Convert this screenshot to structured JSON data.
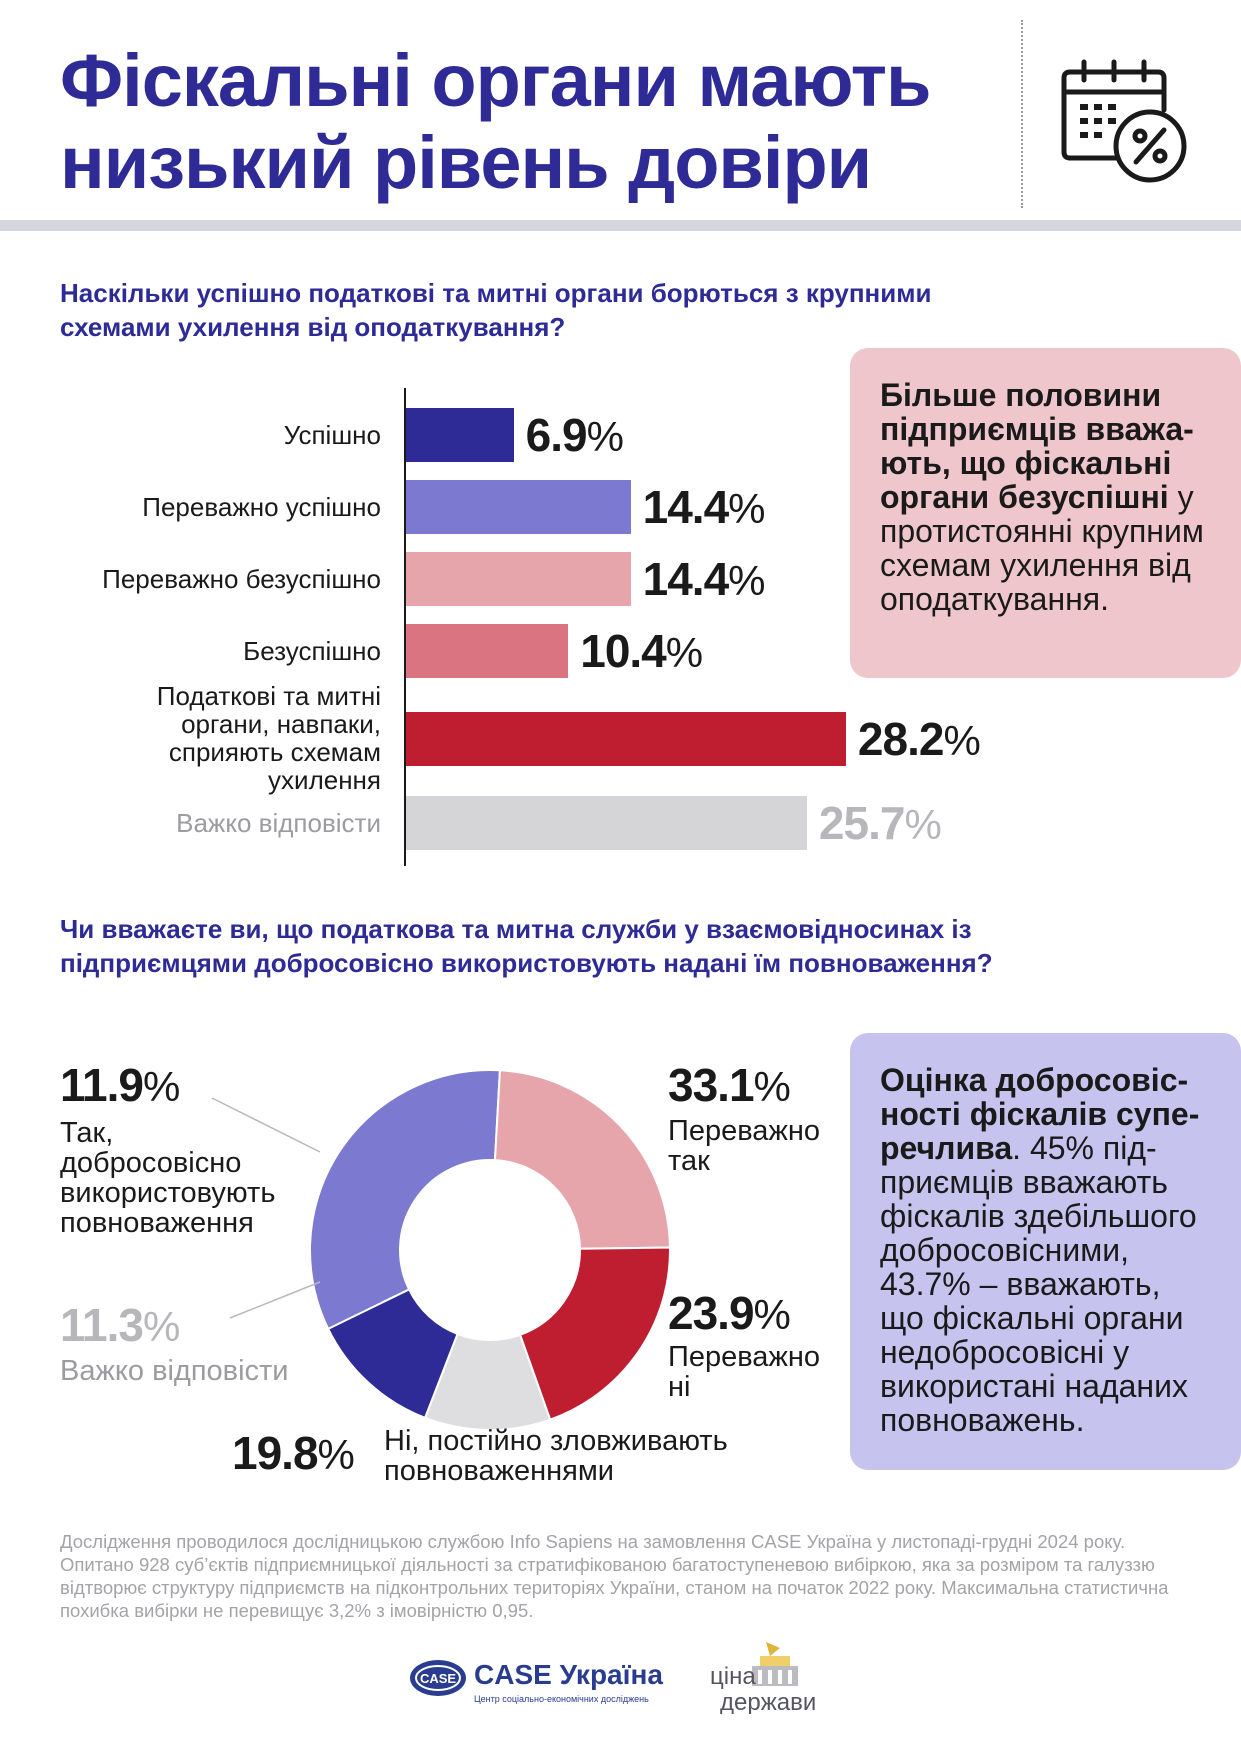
{
  "title": {
    "line1": "Фіскальні органи мають",
    "line2": "низький рівень довіри"
  },
  "header_icon": "calendar-percent-icon",
  "question1": "Наскільки успішно податкові та митні органи борються з крупними схемами ухилення від оподаткування?",
  "callout1": {
    "bold": "Більше половини підприємців вважа­ють, що фіскальні органи безуспішні",
    "rest": " у протистоянні крупним схемам ухилення від опо­даткування."
  },
  "question2": "Чи вважаєте ви, що податкова та митна служби у взаємовідносинах із підприємцями добросовісно використовують надані їм повноваження?",
  "callout2": {
    "bold": "Оцінка добросовіс­ності фіскалів супе­речлива",
    "rest": ". 45% під­приємців вважають фіскалів здебільшо­го добросовісними, 43.7% – вважають, що фіскальні органи недобросовісні у використані нада­них повноважень."
  },
  "chart_data": [
    {
      "type": "bar",
      "orientation": "horizontal",
      "unit": "%",
      "categories": [
        "Успішно",
        "Переважно успішно",
        "Переважно безуспішно",
        "Безуспішно",
        "Податкові та митні органи, навпаки, сприяють схемам ухилення",
        "Важко відповісти"
      ],
      "values": [
        6.9,
        14.4,
        14.4,
        10.4,
        28.2,
        25.7
      ],
      "value_labels": [
        "6.9",
        "14.4",
        "14.4",
        "10.4",
        "28.2",
        "25.7"
      ],
      "colors": [
        "#2e2a96",
        "#7b79d0",
        "#e6a5ab",
        "#d97480",
        "#be1e2f",
        "#d5d5d8"
      ],
      "xlim": [
        0,
        30
      ]
    },
    {
      "type": "pie",
      "donut": true,
      "unit": "%",
      "categories": [
        "Переважно так",
        "Переважно ні",
        "Ні, постійно зловживають повноваженнями",
        "Важко відповісти",
        "Так, добросовісно використовують повноваження"
      ],
      "values": [
        33.1,
        23.9,
        19.8,
        11.3,
        11.9
      ],
      "value_labels": [
        "33.1",
        "23.9",
        "19.8",
        "11.3",
        "11.9"
      ],
      "colors": [
        "#7b79d0",
        "#e6a5ab",
        "#be1e2f",
        "#dedee0",
        "#2e2a96"
      ]
    }
  ],
  "footnote": "Дослідження проводилося дослідницькою службою Info Sapiens на замовлення CASE Україна у листопаді-грудні 2024 року. Опитано 928 суб’єктів підприємницької діяльності за стратифікованою багатоступеневою вибіркою, яка за розміром та галуззю відтворює структуру підприємств на підконтрольних територіях України, станом на початок 2022 року. Максимальна статистична похибка вибірки не перевищує 3,2% з імовірністю 0,95.",
  "logos": {
    "case_badge": "CASE",
    "case_name": "CASE Україна",
    "case_tagline": "Центр соціально-економічних досліджень",
    "cina_line1": "ціна",
    "cina_line2": "держави"
  }
}
